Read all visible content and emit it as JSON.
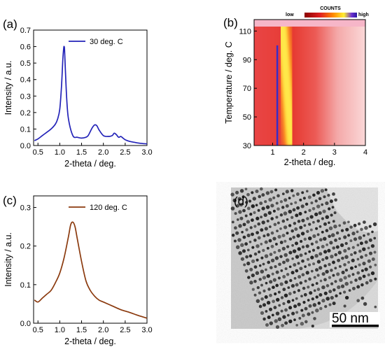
{
  "panels": {
    "a": {
      "label": "(a)"
    },
    "b": {
      "label": "(b)"
    },
    "c": {
      "label": "(c)"
    },
    "d": {
      "label": "(d)",
      "scalebar": "50 nm"
    }
  },
  "chart_data": [
    {
      "id": "a",
      "type": "line",
      "xlabel": "2-theta / deg.",
      "ylabel": "Intensity / a.u.",
      "xlim": [
        0.4,
        3.0
      ],
      "ylim": [
        0.0,
        0.7
      ],
      "xticks": [
        "0.5",
        "1.0",
        "1.5",
        "2.0",
        "2.5",
        "3.0"
      ],
      "yticks": [
        "0.0",
        "0.1",
        "0.2",
        "0.3",
        "0.4",
        "0.5",
        "0.6",
        "0.7"
      ],
      "legend_position": "top-right",
      "series": [
        {
          "name": "30 deg. C",
          "color": "#2323b8",
          "x": [
            0.42,
            0.5,
            0.6,
            0.7,
            0.8,
            0.9,
            0.95,
            1.0,
            1.04,
            1.07,
            1.09,
            1.1,
            1.11,
            1.13,
            1.16,
            1.2,
            1.3,
            1.4,
            1.5,
            1.6,
            1.65,
            1.7,
            1.75,
            1.8,
            1.85,
            1.9,
            2.0,
            2.1,
            2.2,
            2.25,
            2.3,
            2.35,
            2.4,
            2.45,
            2.5,
            2.6,
            2.7,
            2.8,
            2.9,
            3.0
          ],
          "y": [
            0.03,
            0.04,
            0.06,
            0.08,
            0.1,
            0.13,
            0.16,
            0.22,
            0.36,
            0.52,
            0.59,
            0.6,
            0.58,
            0.45,
            0.28,
            0.16,
            0.06,
            0.05,
            0.045,
            0.05,
            0.06,
            0.085,
            0.11,
            0.125,
            0.12,
            0.095,
            0.06,
            0.055,
            0.06,
            0.075,
            0.065,
            0.05,
            0.055,
            0.045,
            0.035,
            0.025,
            0.02,
            0.015,
            0.012,
            0.01
          ]
        }
      ]
    },
    {
      "id": "b",
      "type": "heatmap",
      "xlabel": "2-theta / deg.",
      "ylabel": "Temperature / deg. C",
      "xlim": [
        0.4,
        4.0
      ],
      "ylim": [
        30,
        118
      ],
      "xticks": [
        "1",
        "2",
        "3",
        "4"
      ],
      "yticks": [
        "30",
        "50",
        "70",
        "90",
        "110"
      ],
      "colorbar": {
        "title": "COUNTS",
        "low": "low",
        "high": "high"
      },
      "ridges": [
        {
          "x_start": 1.15,
          "x_end": 1.15,
          "T_start": 30,
          "T_end": 100,
          "intensity": "high"
        },
        {
          "x_start": 1.6,
          "x_end": 1.3,
          "T_start": 30,
          "T_end": 118,
          "intensity": "medium"
        },
        {
          "x_start": 2.4,
          "x_end": 2.4,
          "T_start": 30,
          "T_end": 100,
          "intensity": "low"
        }
      ]
    },
    {
      "id": "c",
      "type": "line",
      "xlabel": "2-theta / deg.",
      "ylabel": "Intensity / a.u.",
      "xlim": [
        0.4,
        3.0
      ],
      "ylim": [
        0.0,
        0.33
      ],
      "xticks": [
        "0.5",
        "1.0",
        "1.5",
        "2.0",
        "2.5",
        "3.0"
      ],
      "yticks": [
        "0.0",
        "0.1",
        "0.2",
        "0.3"
      ],
      "legend_position": "top-right",
      "series": [
        {
          "name": "120 deg. C",
          "color": "#8b3a0e",
          "x": [
            0.42,
            0.5,
            0.6,
            0.7,
            0.8,
            0.9,
            1.0,
            1.1,
            1.2,
            1.25,
            1.3,
            1.35,
            1.4,
            1.5,
            1.6,
            1.7,
            1.8,
            1.9,
            2.0,
            2.2,
            2.4,
            2.6,
            2.8,
            3.0
          ],
          "y": [
            0.06,
            0.055,
            0.065,
            0.075,
            0.085,
            0.105,
            0.13,
            0.17,
            0.225,
            0.255,
            0.262,
            0.25,
            0.22,
            0.16,
            0.11,
            0.085,
            0.07,
            0.06,
            0.055,
            0.045,
            0.035,
            0.028,
            0.02,
            0.013
          ]
        }
      ]
    }
  ]
}
